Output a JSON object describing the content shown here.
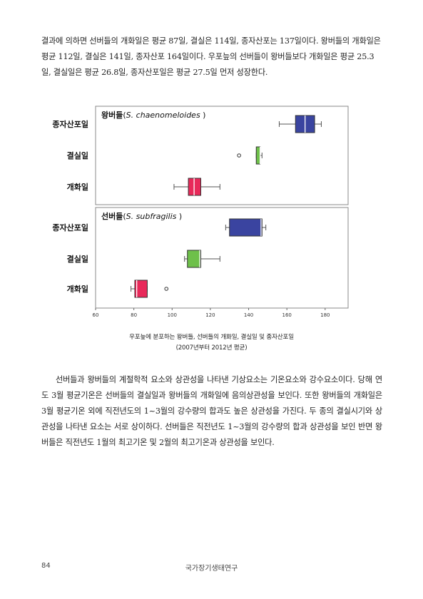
{
  "paragraphs": [
    "결과에 의하면 선버들의 개화일은 평균 87일, 결실은 114일, 종자산포는 137일이다. 왕버들의 개화일은 평균 112일, 결실은 141일, 종자산포 164일이다. 우포늪의 선버들이 왕버들보다 개화일은 평균 25.3일, 결실일은 평균 26.8일, 종자산포일은 평균 27.5일 먼저 성장한다.",
    "선버들과 왕버들의 계절학적 요소와 상관성을 나타낸 기상요소는 기온요소와 강수요소이다. 당해 연도 3월 평균기온은 선버들의 결실일과 왕버들의 개화일에 음의상관성을 보인다. 또한 왕버들의 개화일은 3월 평균기온 외에 직전년도의 1~3월의 강수량의 합과도 높은 상관성을 가진다. 두 종의 결실시기와 상관성을 나타낸 요소는 서로 상이하다. 선버들은 직전년도 1~3월의 강수량의 합과 상관성을 보인 반면 왕버들은 직전년도 1월의 최고기온 및 2월의 최고기온과 상관성을 보인다."
  ],
  "chart_data": {
    "type": "boxplot",
    "xlim": [
      60,
      192
    ],
    "xticks": [
      60,
      80,
      100,
      120,
      140,
      160,
      180
    ],
    "categories": [
      "종자산포일",
      "결실일",
      "개화일"
    ],
    "colors": {
      "종자산포일": "#3a44a0",
      "결실일": "#6ec04a",
      "개화일": "#e8295a"
    },
    "panels": [
      {
        "title_species": "왕버들",
        "title_sci": "S. chaenomeloides",
        "boxes": [
          {
            "category": "종자산포일",
            "whisker_low": 156,
            "q1": 164.5,
            "median": 169.5,
            "q3": 174.5,
            "whisker_high": 178,
            "outliers": []
          },
          {
            "category": "결실일",
            "whisker_low": 144,
            "q1": 144,
            "median": 146,
            "q3": 146,
            "whisker_high": 147,
            "outliers": [
              135
            ]
          },
          {
            "category": "개화일",
            "whisker_low": 101,
            "q1": 108.5,
            "median": 111.5,
            "q3": 115,
            "whisker_high": 125,
            "outliers": []
          }
        ]
      },
      {
        "title_species": "선버들",
        "title_sci": "S. subfragilis",
        "boxes": [
          {
            "category": "종자산포일",
            "whisker_low": 128,
            "q1": 130,
            "median": 146.5,
            "q3": 147,
            "whisker_high": 149,
            "outliers": []
          },
          {
            "category": "결실일",
            "whisker_low": 106.5,
            "q1": 108,
            "median": 114.5,
            "q3": 115,
            "whisker_high": 125,
            "outliers": []
          },
          {
            "category": "개화일",
            "whisker_low": 78.5,
            "q1": 80.5,
            "median": 81.5,
            "q3": 87,
            "whisker_high": 87,
            "outliers": [
              97
            ]
          }
        ]
      }
    ]
  },
  "caption": {
    "line1": "우포늪에 분포하는 왕버들, 선버들의 개화일, 결실일 및 종자산포일",
    "line2": "(2007년부터 2012년 평균)"
  },
  "footer": {
    "page_number": "84",
    "book_title": "국가장기생태연구"
  }
}
